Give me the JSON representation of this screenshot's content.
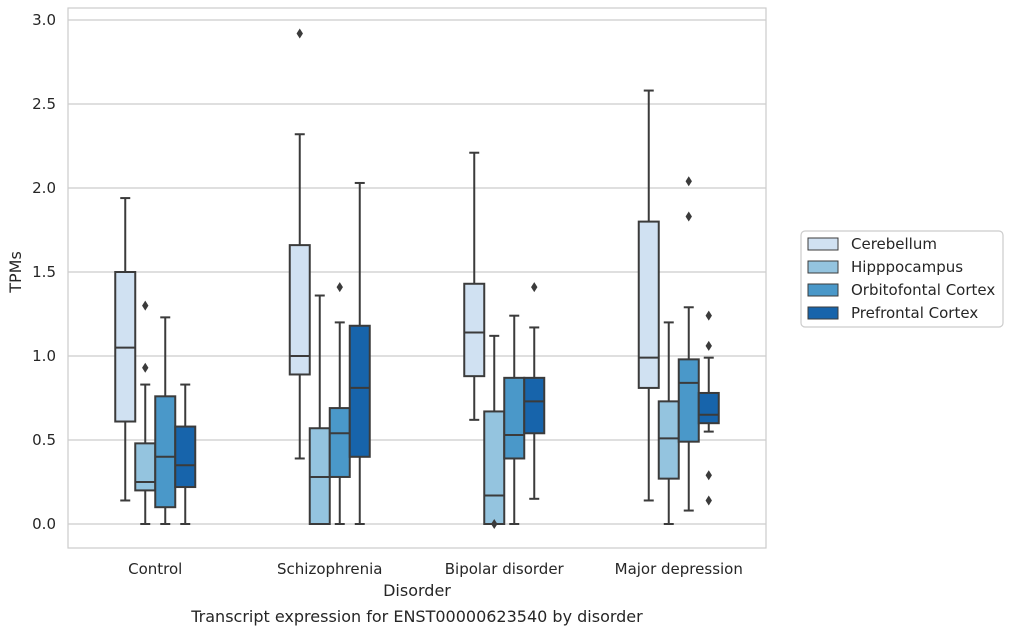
{
  "chart_data": {
    "type": "box",
    "caption": "Transcript expression for ENST00000623540 by disorder",
    "xlabel": "Disorder",
    "ylabel": "TPMs",
    "ylim": [
      -0.14,
      3.08
    ],
    "yticks": [
      "0.0",
      "0.5",
      "1.0",
      "1.5",
      "2.0",
      "2.5",
      "3.0"
    ],
    "grid": "horizontal",
    "legend_position": "right",
    "categories": [
      "Control",
      "Schizophrenia",
      "Bipolar disorder",
      "Major depression"
    ],
    "series": [
      {
        "name": "Cerebellum",
        "color": "#d0e1f2",
        "boxes": [
          {
            "whislo": 0.14,
            "q1": 0.61,
            "med": 1.05,
            "q3": 1.5,
            "whishi": 1.94,
            "fliers": []
          },
          {
            "whislo": 0.39,
            "q1": 0.89,
            "med": 1.0,
            "q3": 1.66,
            "whishi": 2.32,
            "fliers": [
              2.92
            ]
          },
          {
            "whislo": 0.62,
            "q1": 0.88,
            "med": 1.14,
            "q3": 1.43,
            "whishi": 2.21,
            "fliers": []
          },
          {
            "whislo": 0.14,
            "q1": 0.81,
            "med": 0.99,
            "q3": 1.8,
            "whishi": 2.58,
            "fliers": []
          }
        ]
      },
      {
        "name": "Hipppocampus",
        "color": "#94c4df",
        "boxes": [
          {
            "whislo": 0.0,
            "q1": 0.2,
            "med": 0.25,
            "q3": 0.48,
            "whishi": 0.83,
            "fliers": [
              1.3,
              0.93
            ]
          },
          {
            "whislo": 0.0,
            "q1": 0.0,
            "med": 0.28,
            "q3": 0.57,
            "whishi": 1.36,
            "fliers": []
          },
          {
            "whislo": 0.0,
            "q1": 0.0,
            "med": 0.17,
            "q3": 0.67,
            "whishi": 1.12,
            "fliers": [
              0.0
            ]
          },
          {
            "whislo": 0.0,
            "q1": 0.27,
            "med": 0.51,
            "q3": 0.73,
            "whishi": 1.2,
            "fliers": []
          }
        ]
      },
      {
        "name": "Orbitofontal Cortex",
        "color": "#4a98c9",
        "boxes": [
          {
            "whislo": 0.0,
            "q1": 0.1,
            "med": 0.4,
            "q3": 0.76,
            "whishi": 1.23,
            "fliers": []
          },
          {
            "whislo": 0.0,
            "q1": 0.28,
            "med": 0.54,
            "q3": 0.69,
            "whishi": 1.2,
            "fliers": [
              1.41
            ]
          },
          {
            "whislo": 0.0,
            "q1": 0.39,
            "med": 0.53,
            "q3": 0.87,
            "whishi": 1.24,
            "fliers": []
          },
          {
            "whislo": 0.08,
            "q1": 0.49,
            "med": 0.84,
            "q3": 0.98,
            "whishi": 1.29,
            "fliers": [
              2.04,
              1.83
            ]
          }
        ]
      },
      {
        "name": "Prefrontal Cortex",
        "color": "#1764ab",
        "boxes": [
          {
            "whislo": 0.0,
            "q1": 0.22,
            "med": 0.35,
            "q3": 0.58,
            "whishi": 0.83,
            "fliers": []
          },
          {
            "whislo": 0.0,
            "q1": 0.4,
            "med": 0.81,
            "q3": 1.18,
            "whishi": 2.03,
            "fliers": []
          },
          {
            "whislo": 0.15,
            "q1": 0.54,
            "med": 0.73,
            "q3": 0.87,
            "whishi": 1.17,
            "fliers": [
              1.41
            ]
          },
          {
            "whislo": 0.55,
            "q1": 0.6,
            "med": 0.65,
            "q3": 0.78,
            "whishi": 0.99,
            "fliers": [
              1.24,
              1.06,
              0.29,
              0.14
            ]
          }
        ]
      }
    ]
  }
}
